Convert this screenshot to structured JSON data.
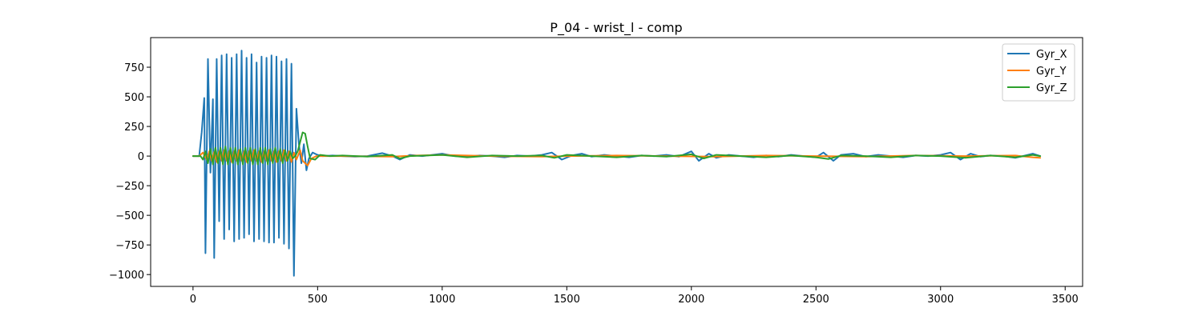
{
  "chart_data": {
    "type": "line",
    "title": "P_04 - wrist_l - comp",
    "xlabel": "",
    "ylabel": "",
    "xlim": [
      -170,
      3570
    ],
    "ylim": [
      -1100,
      1000
    ],
    "xticks": [
      0,
      500,
      1000,
      1500,
      2000,
      2500,
      3000,
      3500
    ],
    "xtick_labels": [
      "0",
      "500",
      "1000",
      "1500",
      "2000",
      "2500",
      "3000",
      "3500"
    ],
    "yticks": [
      750,
      500,
      250,
      0,
      -250,
      -500,
      -750,
      -1000
    ],
    "ytick_labels": [
      "750",
      "500",
      "250",
      "0",
      "−250",
      "−500",
      "−750",
      "−1000"
    ],
    "legend_position": "top-right",
    "series": [
      {
        "name": "Gyr_X",
        "color": "#1f77b4",
        "points": [
          [
            0,
            0
          ],
          [
            25,
            0
          ],
          [
            35,
            200
          ],
          [
            45,
            490
          ],
          [
            50,
            -820
          ],
          [
            60,
            820
          ],
          [
            70,
            -140
          ],
          [
            80,
            480
          ],
          [
            85,
            -860
          ],
          [
            95,
            820
          ],
          [
            105,
            -550
          ],
          [
            115,
            850
          ],
          [
            125,
            -700
          ],
          [
            135,
            860
          ],
          [
            145,
            -620
          ],
          [
            155,
            830
          ],
          [
            165,
            -720
          ],
          [
            175,
            860
          ],
          [
            185,
            -700
          ],
          [
            195,
            890
          ],
          [
            205,
            -690
          ],
          [
            215,
            830
          ],
          [
            225,
            -660
          ],
          [
            235,
            860
          ],
          [
            245,
            -720
          ],
          [
            255,
            790
          ],
          [
            265,
            -700
          ],
          [
            275,
            840
          ],
          [
            285,
            -720
          ],
          [
            295,
            830
          ],
          [
            305,
            -730
          ],
          [
            315,
            850
          ],
          [
            325,
            -730
          ],
          [
            335,
            840
          ],
          [
            345,
            -690
          ],
          [
            355,
            800
          ],
          [
            365,
            -740
          ],
          [
            375,
            820
          ],
          [
            385,
            -780
          ],
          [
            395,
            780
          ],
          [
            405,
            -1010
          ],
          [
            415,
            400
          ],
          [
            425,
            100
          ],
          [
            435,
            -60
          ],
          [
            445,
            100
          ],
          [
            455,
            -120
          ],
          [
            465,
            -20
          ],
          [
            480,
            30
          ],
          [
            500,
            10
          ],
          [
            520,
            0
          ],
          [
            560,
            5
          ],
          [
            600,
            0
          ],
          [
            650,
            -5
          ],
          [
            700,
            0
          ],
          [
            760,
            25
          ],
          [
            800,
            0
          ],
          [
            830,
            -30
          ],
          [
            870,
            10
          ],
          [
            920,
            0
          ],
          [
            960,
            10
          ],
          [
            1000,
            20
          ],
          [
            1050,
            0
          ],
          [
            1100,
            -5
          ],
          [
            1150,
            5
          ],
          [
            1200,
            0
          ],
          [
            1250,
            -10
          ],
          [
            1300,
            5
          ],
          [
            1350,
            0
          ],
          [
            1400,
            10
          ],
          [
            1440,
            30
          ],
          [
            1480,
            -30
          ],
          [
            1520,
            5
          ],
          [
            1560,
            20
          ],
          [
            1600,
            -5
          ],
          [
            1650,
            10
          ],
          [
            1700,
            0
          ],
          [
            1750,
            -10
          ],
          [
            1800,
            5
          ],
          [
            1850,
            0
          ],
          [
            1900,
            10
          ],
          [
            1950,
            -5
          ],
          [
            2000,
            40
          ],
          [
            2030,
            -40
          ],
          [
            2070,
            20
          ],
          [
            2100,
            -15
          ],
          [
            2150,
            10
          ],
          [
            2200,
            0
          ],
          [
            2250,
            -10
          ],
          [
            2300,
            5
          ],
          [
            2350,
            -5
          ],
          [
            2400,
            10
          ],
          [
            2450,
            0
          ],
          [
            2500,
            -10
          ],
          [
            2530,
            30
          ],
          [
            2570,
            -40
          ],
          [
            2600,
            10
          ],
          [
            2650,
            20
          ],
          [
            2700,
            -5
          ],
          [
            2750,
            10
          ],
          [
            2800,
            0
          ],
          [
            2850,
            -10
          ],
          [
            2900,
            5
          ],
          [
            2950,
            0
          ],
          [
            3000,
            10
          ],
          [
            3040,
            30
          ],
          [
            3080,
            -30
          ],
          [
            3120,
            20
          ],
          [
            3160,
            -5
          ],
          [
            3200,
            5
          ],
          [
            3250,
            0
          ],
          [
            3300,
            -15
          ],
          [
            3340,
            5
          ],
          [
            3370,
            20
          ],
          [
            3400,
            0
          ]
        ]
      },
      {
        "name": "Gyr_Y",
        "color": "#ff7f0e",
        "points": [
          [
            0,
            0
          ],
          [
            25,
            0
          ],
          [
            40,
            30
          ],
          [
            55,
            -30
          ],
          [
            65,
            40
          ],
          [
            75,
            -40
          ],
          [
            85,
            35
          ],
          [
            95,
            -50
          ],
          [
            105,
            40
          ],
          [
            115,
            -40
          ],
          [
            125,
            50
          ],
          [
            135,
            -40
          ],
          [
            145,
            40
          ],
          [
            155,
            -50
          ],
          [
            165,
            40
          ],
          [
            175,
            -40
          ],
          [
            185,
            50
          ],
          [
            195,
            -40
          ],
          [
            205,
            40
          ],
          [
            215,
            -50
          ],
          [
            225,
            40
          ],
          [
            235,
            -40
          ],
          [
            245,
            50
          ],
          [
            255,
            -40
          ],
          [
            265,
            40
          ],
          [
            275,
            -50
          ],
          [
            285,
            40
          ],
          [
            295,
            -40
          ],
          [
            305,
            50
          ],
          [
            315,
            -40
          ],
          [
            325,
            40
          ],
          [
            335,
            -50
          ],
          [
            345,
            40
          ],
          [
            355,
            -40
          ],
          [
            365,
            50
          ],
          [
            375,
            -40
          ],
          [
            385,
            40
          ],
          [
            395,
            -50
          ],
          [
            405,
            30
          ],
          [
            415,
            -30
          ],
          [
            430,
            50
          ],
          [
            440,
            -40
          ],
          [
            450,
            -60
          ],
          [
            460,
            -80
          ],
          [
            475,
            -20
          ],
          [
            495,
            0
          ],
          [
            600,
            0
          ],
          [
            800,
            -5
          ],
          [
            900,
            5
          ],
          [
            1000,
            10
          ],
          [
            1200,
            0
          ],
          [
            1400,
            -5
          ],
          [
            1500,
            0
          ],
          [
            1700,
            5
          ],
          [
            1900,
            0
          ],
          [
            2100,
            -5
          ],
          [
            2300,
            5
          ],
          [
            2500,
            0
          ],
          [
            2700,
            -5
          ],
          [
            2900,
            5
          ],
          [
            3100,
            0
          ],
          [
            3300,
            5
          ],
          [
            3370,
            -10
          ],
          [
            3400,
            -15
          ]
        ]
      },
      {
        "name": "Gyr_Z",
        "color": "#2ca02c",
        "points": [
          [
            0,
            0
          ],
          [
            30,
            0
          ],
          [
            40,
            -30
          ],
          [
            50,
            40
          ],
          [
            60,
            -60
          ],
          [
            70,
            60
          ],
          [
            80,
            -70
          ],
          [
            90,
            70
          ],
          [
            100,
            -60
          ],
          [
            110,
            70
          ],
          [
            120,
            -70
          ],
          [
            130,
            80
          ],
          [
            140,
            -70
          ],
          [
            150,
            70
          ],
          [
            160,
            -60
          ],
          [
            170,
            70
          ],
          [
            180,
            -70
          ],
          [
            190,
            60
          ],
          [
            200,
            -70
          ],
          [
            210,
            70
          ],
          [
            220,
            -60
          ],
          [
            230,
            70
          ],
          [
            240,
            -70
          ],
          [
            250,
            60
          ],
          [
            260,
            -70
          ],
          [
            270,
            70
          ],
          [
            280,
            -60
          ],
          [
            290,
            70
          ],
          [
            300,
            -70
          ],
          [
            310,
            60
          ],
          [
            320,
            -60
          ],
          [
            330,
            70
          ],
          [
            340,
            -50
          ],
          [
            350,
            60
          ],
          [
            360,
            -60
          ],
          [
            370,
            50
          ],
          [
            380,
            -40
          ],
          [
            390,
            40
          ],
          [
            400,
            -20
          ],
          [
            410,
            0
          ],
          [
            420,
            40
          ],
          [
            430,
            120
          ],
          [
            440,
            200
          ],
          [
            450,
            190
          ],
          [
            460,
            80
          ],
          [
            470,
            -20
          ],
          [
            490,
            -30
          ],
          [
            510,
            10
          ],
          [
            550,
            0
          ],
          [
            600,
            5
          ],
          [
            700,
            -5
          ],
          [
            800,
            10
          ],
          [
            830,
            -20
          ],
          [
            870,
            0
          ],
          [
            1000,
            10
          ],
          [
            1100,
            -10
          ],
          [
            1200,
            5
          ],
          [
            1300,
            0
          ],
          [
            1400,
            5
          ],
          [
            1450,
            -15
          ],
          [
            1500,
            10
          ],
          [
            1600,
            0
          ],
          [
            1700,
            -10
          ],
          [
            1800,
            5
          ],
          [
            1900,
            -5
          ],
          [
            2000,
            15
          ],
          [
            2050,
            -20
          ],
          [
            2100,
            10
          ],
          [
            2200,
            0
          ],
          [
            2300,
            -10
          ],
          [
            2400,
            5
          ],
          [
            2500,
            -10
          ],
          [
            2550,
            -25
          ],
          [
            2600,
            5
          ],
          [
            2700,
            0
          ],
          [
            2800,
            -10
          ],
          [
            2900,
            5
          ],
          [
            3000,
            0
          ],
          [
            3100,
            -15
          ],
          [
            3200,
            5
          ],
          [
            3300,
            -10
          ],
          [
            3370,
            10
          ],
          [
            3400,
            0
          ]
        ]
      }
    ]
  }
}
